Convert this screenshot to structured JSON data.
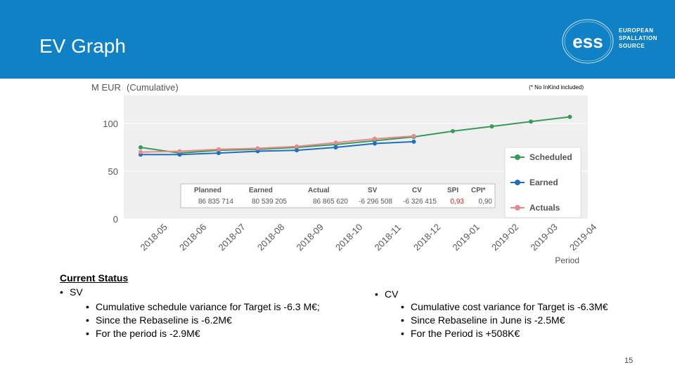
{
  "slide": {
    "title": "EV Graph",
    "page_number": "15",
    "logo": {
      "line1": "EUROPEAN",
      "line2": "SPALLATION",
      "line3": "SOURCE",
      "mark": "ess"
    }
  },
  "chart_data": {
    "type": "line",
    "ylabel": "M EUR",
    "ylabel_note": "(Cumulative)",
    "note": "(* No InKind included)",
    "xlabel": "Period",
    "ylim": [
      0,
      125
    ],
    "yticks": [
      0,
      50,
      100
    ],
    "categories": [
      "2018-05",
      "2018-06",
      "2018-07",
      "2018-08",
      "2018-09",
      "2018-10",
      "2018-11",
      "2018-12",
      "2019-01",
      "2019-02",
      "2019-03",
      "2019-04"
    ],
    "series": [
      {
        "name": "Scheduled",
        "color": "#3a9a5b",
        "values": [
          75,
          69,
          72,
          73,
          75,
          78,
          82,
          86,
          92,
          97,
          102,
          107
        ]
      },
      {
        "name": "Earned",
        "color": "#1f6fc2",
        "values": [
          67.5,
          67.5,
          69,
          71,
          72,
          75,
          79,
          81,
          null,
          null,
          null,
          null
        ]
      },
      {
        "name": "Actuals",
        "color": "#e88a8a",
        "values": [
          70,
          71,
          73,
          74,
          76,
          80,
          84,
          86.9,
          null,
          null,
          null,
          null
        ]
      }
    ],
    "legend_position": "right",
    "table": {
      "headers": [
        "Planned",
        "Earned",
        "Actual",
        "SV",
        "CV",
        "SPI",
        "CPI*"
      ],
      "values": [
        "86 835 714",
        "80 539 205",
        "86 865 620",
        "-6 296 508",
        "-6 326 415",
        "0,93",
        "0,90"
      ],
      "spi_color": "#d02020"
    }
  },
  "status": {
    "heading": "Current Status",
    "sv": {
      "label": "SV",
      "items": [
        "Cumulative schedule variance for Target is -6.3 M€;",
        "Since the Rebaseline is -6.2M€",
        "For the period is -2.9M€"
      ]
    },
    "cv": {
      "label": "CV",
      "items": [
        "Cumulative cost variance for Target is -6.3M€",
        "Since Rebaseline in June is -2.5M€",
        "For the Period is +508K€"
      ]
    }
  }
}
